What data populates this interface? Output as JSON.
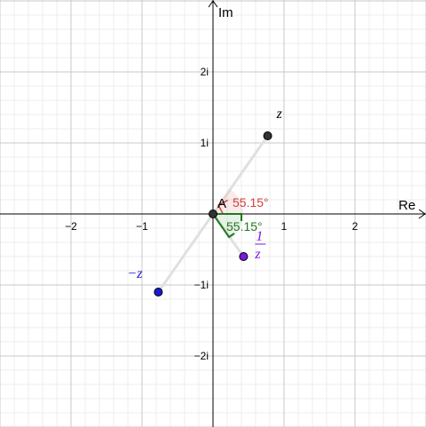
{
  "axes": {
    "x_label": "Re",
    "y_label": "Im",
    "x_range": [
      -3,
      3
    ],
    "y_range": [
      -3,
      3
    ],
    "x_ticks": [
      {
        "value": -2,
        "label": "−2"
      },
      {
        "value": -1,
        "label": "−1"
      },
      {
        "value": 1,
        "label": "1"
      },
      {
        "value": 2,
        "label": "2"
      }
    ],
    "y_ticks": [
      {
        "value": 2,
        "label": "2i"
      },
      {
        "value": 1,
        "label": "1i"
      },
      {
        "value": -1,
        "label": "−1i"
      },
      {
        "value": -2,
        "label": "−2i"
      }
    ],
    "grid": "major and minor"
  },
  "points": {
    "origin": {
      "label": "A",
      "x": 0,
      "y": 0,
      "color": "#333333"
    },
    "z": {
      "label": "z",
      "x": 0.77,
      "y": 1.1,
      "color": "#333333"
    },
    "neg_z": {
      "label": "−z",
      "x": -0.77,
      "y": -1.1,
      "color": "#1a1ad6"
    },
    "recip_z": {
      "label_num": "1",
      "label_den": "z",
      "x": 0.43,
      "y": -0.6,
      "color": "#7a1ae0"
    }
  },
  "angles": {
    "upper": {
      "label": "55.15°",
      "degrees": 55.15,
      "color": "#d03f3f"
    },
    "lower": {
      "label": "55.15°",
      "degrees": 55.15,
      "color": "#1f7a1f"
    }
  },
  "colors": {
    "grid_major": "#c8c8c8",
    "grid_minor": "#ececec",
    "axis": "#000000",
    "segment": "#e0e0e0"
  }
}
